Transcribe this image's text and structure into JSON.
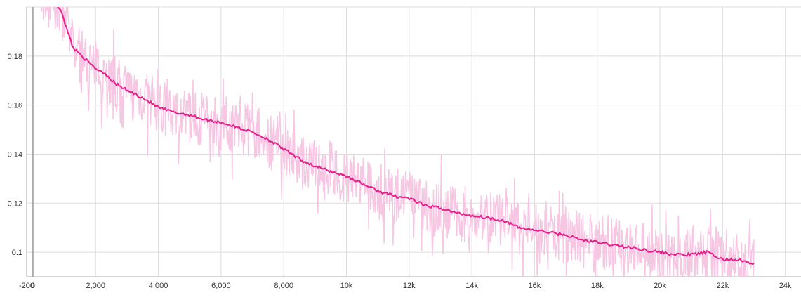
{
  "chart_data": {
    "type": "line",
    "title": "",
    "xlabel": "",
    "ylabel": "",
    "xlim": [
      -200,
      24500
    ],
    "ylim": [
      0.09,
      0.2
    ],
    "grid": true,
    "x_ticks": [
      {
        "value": -200,
        "label": "-200"
      },
      {
        "value": 0,
        "label": "0"
      },
      {
        "value": 2000,
        "label": "2,000"
      },
      {
        "value": 4000,
        "label": "4,000"
      },
      {
        "value": 6000,
        "label": "6,000"
      },
      {
        "value": 8000,
        "label": "8,000"
      },
      {
        "value": 10000,
        "label": "10k"
      },
      {
        "value": 12000,
        "label": "12k"
      },
      {
        "value": 14000,
        "label": "14k"
      },
      {
        "value": 16000,
        "label": "16k"
      },
      {
        "value": 18000,
        "label": "18k"
      },
      {
        "value": 20000,
        "label": "20k"
      },
      {
        "value": 22000,
        "label": "22k"
      },
      {
        "value": 24000,
        "label": "24k"
      }
    ],
    "y_ticks": [
      {
        "value": 0.1,
        "label": "0.1"
      },
      {
        "value": 0.12,
        "label": "0.12"
      },
      {
        "value": 0.14,
        "label": "0.14"
      },
      {
        "value": 0.16,
        "label": "0.16"
      },
      {
        "value": 0.18,
        "label": "0.18"
      }
    ],
    "series": [
      {
        "role": "smoothed",
        "color": "#e91e8c",
        "x": [
          200,
          600,
          900,
          1100,
          1300,
          1500,
          1800,
          2000,
          2300,
          2600,
          3000,
          3500,
          4000,
          4500,
          5000,
          5500,
          6000,
          6500,
          7000,
          7500,
          8000,
          8500,
          9000,
          9500,
          10000,
          10500,
          11000,
          11500,
          12000,
          12500,
          13000,
          13500,
          14000,
          14500,
          15000,
          15500,
          16000,
          16500,
          17000,
          17500,
          18000,
          18500,
          19000,
          19500,
          20000,
          20500,
          21000,
          21500,
          22000,
          22500,
          23000
        ],
        "y": [
          0.205,
          0.202,
          0.199,
          0.19,
          0.183,
          0.181,
          0.177,
          0.175,
          0.173,
          0.169,
          0.166,
          0.163,
          0.159,
          0.157,
          0.156,
          0.154,
          0.153,
          0.151,
          0.149,
          0.146,
          0.142,
          0.138,
          0.135,
          0.133,
          0.131,
          0.128,
          0.125,
          0.123,
          0.122,
          0.119,
          0.118,
          0.116,
          0.115,
          0.114,
          0.113,
          0.11,
          0.109,
          0.108,
          0.107,
          0.105,
          0.104,
          0.103,
          0.102,
          0.101,
          0.1,
          0.099,
          0.099,
          0.1,
          0.097,
          0.097,
          0.095
        ]
      }
    ]
  }
}
